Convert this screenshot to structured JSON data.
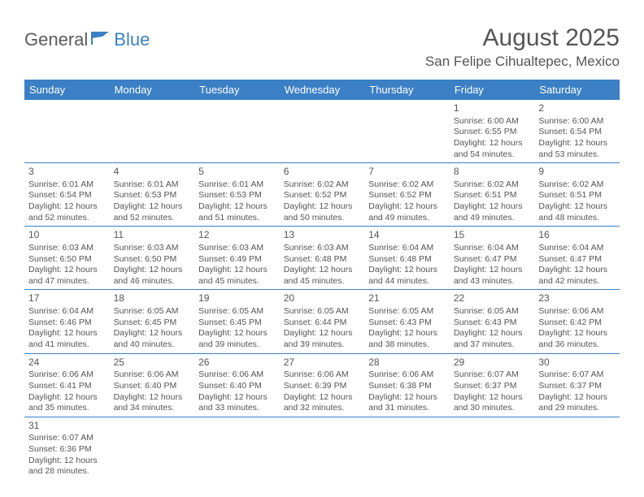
{
  "logo": {
    "text1": "General",
    "text2": "Blue"
  },
  "title": "August 2025",
  "location": "San Felipe Cihualtepec, Mexico",
  "weekdays": [
    "Sunday",
    "Monday",
    "Tuesday",
    "Wednesday",
    "Thursday",
    "Friday",
    "Saturday"
  ],
  "colors": {
    "header_bg": "#3b7fc4",
    "header_fg": "#ffffff",
    "text": "#555555",
    "rule": "#3b7fc4"
  },
  "weeks": [
    [
      null,
      null,
      null,
      null,
      null,
      {
        "d": "1",
        "sr": "6:00 AM",
        "ss": "6:55 PM",
        "dl": "12 hours and 54 minutes."
      },
      {
        "d": "2",
        "sr": "6:00 AM",
        "ss": "6:54 PM",
        "dl": "12 hours and 53 minutes."
      }
    ],
    [
      {
        "d": "3",
        "sr": "6:01 AM",
        "ss": "6:54 PM",
        "dl": "12 hours and 52 minutes."
      },
      {
        "d": "4",
        "sr": "6:01 AM",
        "ss": "6:53 PM",
        "dl": "12 hours and 52 minutes."
      },
      {
        "d": "5",
        "sr": "6:01 AM",
        "ss": "6:53 PM",
        "dl": "12 hours and 51 minutes."
      },
      {
        "d": "6",
        "sr": "6:02 AM",
        "ss": "6:52 PM",
        "dl": "12 hours and 50 minutes."
      },
      {
        "d": "7",
        "sr": "6:02 AM",
        "ss": "6:52 PM",
        "dl": "12 hours and 49 minutes."
      },
      {
        "d": "8",
        "sr": "6:02 AM",
        "ss": "6:51 PM",
        "dl": "12 hours and 49 minutes."
      },
      {
        "d": "9",
        "sr": "6:02 AM",
        "ss": "6:51 PM",
        "dl": "12 hours and 48 minutes."
      }
    ],
    [
      {
        "d": "10",
        "sr": "6:03 AM",
        "ss": "6:50 PM",
        "dl": "12 hours and 47 minutes."
      },
      {
        "d": "11",
        "sr": "6:03 AM",
        "ss": "6:50 PM",
        "dl": "12 hours and 46 minutes."
      },
      {
        "d": "12",
        "sr": "6:03 AM",
        "ss": "6:49 PM",
        "dl": "12 hours and 45 minutes."
      },
      {
        "d": "13",
        "sr": "6:03 AM",
        "ss": "6:48 PM",
        "dl": "12 hours and 45 minutes."
      },
      {
        "d": "14",
        "sr": "6:04 AM",
        "ss": "6:48 PM",
        "dl": "12 hours and 44 minutes."
      },
      {
        "d": "15",
        "sr": "6:04 AM",
        "ss": "6:47 PM",
        "dl": "12 hours and 43 minutes."
      },
      {
        "d": "16",
        "sr": "6:04 AM",
        "ss": "6:47 PM",
        "dl": "12 hours and 42 minutes."
      }
    ],
    [
      {
        "d": "17",
        "sr": "6:04 AM",
        "ss": "6:46 PM",
        "dl": "12 hours and 41 minutes."
      },
      {
        "d": "18",
        "sr": "6:05 AM",
        "ss": "6:45 PM",
        "dl": "12 hours and 40 minutes."
      },
      {
        "d": "19",
        "sr": "6:05 AM",
        "ss": "6:45 PM",
        "dl": "12 hours and 39 minutes."
      },
      {
        "d": "20",
        "sr": "6:05 AM",
        "ss": "6:44 PM",
        "dl": "12 hours and 39 minutes."
      },
      {
        "d": "21",
        "sr": "6:05 AM",
        "ss": "6:43 PM",
        "dl": "12 hours and 38 minutes."
      },
      {
        "d": "22",
        "sr": "6:05 AM",
        "ss": "6:43 PM",
        "dl": "12 hours and 37 minutes."
      },
      {
        "d": "23",
        "sr": "6:06 AM",
        "ss": "6:42 PM",
        "dl": "12 hours and 36 minutes."
      }
    ],
    [
      {
        "d": "24",
        "sr": "6:06 AM",
        "ss": "6:41 PM",
        "dl": "12 hours and 35 minutes."
      },
      {
        "d": "25",
        "sr": "6:06 AM",
        "ss": "6:40 PM",
        "dl": "12 hours and 34 minutes."
      },
      {
        "d": "26",
        "sr": "6:06 AM",
        "ss": "6:40 PM",
        "dl": "12 hours and 33 minutes."
      },
      {
        "d": "27",
        "sr": "6:06 AM",
        "ss": "6:39 PM",
        "dl": "12 hours and 32 minutes."
      },
      {
        "d": "28",
        "sr": "6:06 AM",
        "ss": "6:38 PM",
        "dl": "12 hours and 31 minutes."
      },
      {
        "d": "29",
        "sr": "6:07 AM",
        "ss": "6:37 PM",
        "dl": "12 hours and 30 minutes."
      },
      {
        "d": "30",
        "sr": "6:07 AM",
        "ss": "6:37 PM",
        "dl": "12 hours and 29 minutes."
      }
    ],
    [
      {
        "d": "31",
        "sr": "6:07 AM",
        "ss": "6:36 PM",
        "dl": "12 hours and 28 minutes."
      },
      null,
      null,
      null,
      null,
      null,
      null
    ]
  ],
  "labels": {
    "sunrise": "Sunrise: ",
    "sunset": "Sunset: ",
    "daylight": "Daylight: "
  }
}
